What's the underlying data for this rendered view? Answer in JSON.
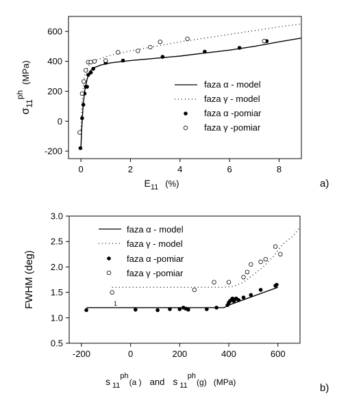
{
  "chart_data": [
    {
      "type": "scatter",
      "panel_label": "a)",
      "xlabel_main": "E",
      "xlabel_sub": "11",
      "xlabel_unit": "(%)",
      "ylabel_main": "σ",
      "ylabel_sub": "11",
      "ylabel_sup": "ph",
      "ylabel_unit": "(MPa)",
      "xlim": [
        -0.5,
        8.9
      ],
      "ylim": [
        -250,
        700
      ],
      "xticks": [
        0,
        2,
        4,
        6,
        8
      ],
      "yticks": [
        -200,
        0,
        200,
        400,
        600
      ],
      "grid": false,
      "legend_position": "lower-right",
      "series": [
        {
          "name": "faza α - model",
          "kind": "line-solid",
          "x": [
            0.0,
            0.03,
            0.08,
            0.15,
            0.25,
            0.35,
            0.5,
            0.8,
            1.2,
            2,
            3,
            4,
            5,
            6,
            7,
            8,
            8.9
          ],
          "y": [
            -180,
            -60,
            80,
            200,
            280,
            330,
            355,
            375,
            390,
            405,
            420,
            435,
            455,
            475,
            500,
            530,
            555
          ]
        },
        {
          "name": "faza γ - model",
          "kind": "line-dotted",
          "x": [
            0.0,
            0.03,
            0.08,
            0.15,
            0.25,
            0.35,
            0.5,
            0.8,
            1.2,
            2,
            3,
            4,
            5,
            6,
            7,
            8,
            8.9
          ],
          "y": [
            -80,
            60,
            200,
            300,
            350,
            380,
            400,
            420,
            440,
            470,
            500,
            530,
            555,
            580,
            605,
            630,
            650
          ]
        },
        {
          "name": "faza α -pomiar",
          "kind": "filled",
          "x": [
            -0.02,
            0.05,
            0.1,
            0.15,
            0.2,
            0.25,
            0.3,
            0.4,
            0.5,
            1.0,
            1.7,
            3.3,
            5.0,
            6.4,
            7.5
          ],
          "y": [
            -180,
            20,
            110,
            185,
            230,
            230,
            310,
            325,
            350,
            390,
            405,
            430,
            465,
            490,
            535
          ]
        },
        {
          "name": "faza γ -pomiar",
          "kind": "open",
          "x": [
            -0.05,
            0.05,
            0.12,
            0.2,
            0.3,
            0.4,
            0.55,
            1.0,
            1.5,
            2.3,
            2.8,
            3.2,
            4.3,
            7.4
          ],
          "y": [
            -75,
            185,
            265,
            340,
            395,
            395,
            400,
            405,
            460,
            470,
            495,
            530,
            550,
            535
          ]
        }
      ]
    },
    {
      "type": "scatter",
      "panel_label": "b)",
      "ylabel": "FWHM (deg)",
      "xlabel_parts": [
        "s",
        "11",
        "ph",
        "(a )",
        "and",
        "s",
        "11",
        "ph",
        "(g)",
        "(MPa)"
      ],
      "xlim": [
        -250,
        690
      ],
      "ylim": [
        0.5,
        3.0
      ],
      "xticks": [
        -200,
        0,
        200,
        400,
        600
      ],
      "yticks": [
        "0.5",
        "1.0",
        "1.5",
        "2.0",
        "2.5",
        "3.0"
      ],
      "ytick_values": [
        0.5,
        1.0,
        1.5,
        2.0,
        2.5,
        3.0
      ],
      "grid": false,
      "legend_position": "top-left",
      "annotation": "1",
      "series": [
        {
          "name": "faza α - model",
          "kind": "line-solid",
          "x": [
            -180,
            380,
            400,
            600
          ],
          "y": [
            1.2,
            1.2,
            1.25,
            1.6
          ]
        },
        {
          "name": "faza γ - model",
          "kind": "line-dotted",
          "x": [
            -75,
            300,
            380,
            420,
            460,
            500,
            540,
            580,
            620,
            660,
            690
          ],
          "y": [
            1.6,
            1.6,
            1.6,
            1.62,
            1.7,
            1.85,
            2.0,
            2.2,
            2.45,
            2.6,
            2.78
          ]
        },
        {
          "name": "faza α -pomiar",
          "kind": "filled",
          "x": [
            -180,
            20,
            110,
            160,
            200,
            215,
            225,
            235,
            310,
            350,
            395,
            400,
            405,
            410,
            415,
            420,
            425,
            430,
            440,
            460,
            490,
            530,
            590,
            595
          ],
          "y": [
            1.15,
            1.16,
            1.15,
            1.17,
            1.17,
            1.2,
            1.18,
            1.16,
            1.17,
            1.2,
            1.25,
            1.3,
            1.33,
            1.35,
            1.38,
            1.33,
            1.36,
            1.38,
            1.35,
            1.4,
            1.45,
            1.55,
            1.63,
            1.65
          ]
        },
        {
          "name": "faza γ -pomiar",
          "kind": "open",
          "x": [
            -75,
            260,
            340,
            400,
            460,
            475,
            490,
            530,
            550,
            590,
            610
          ],
          "y": [
            1.5,
            1.55,
            1.7,
            1.7,
            1.8,
            1.9,
            2.05,
            2.1,
            2.15,
            2.4,
            2.25
          ]
        }
      ]
    }
  ]
}
